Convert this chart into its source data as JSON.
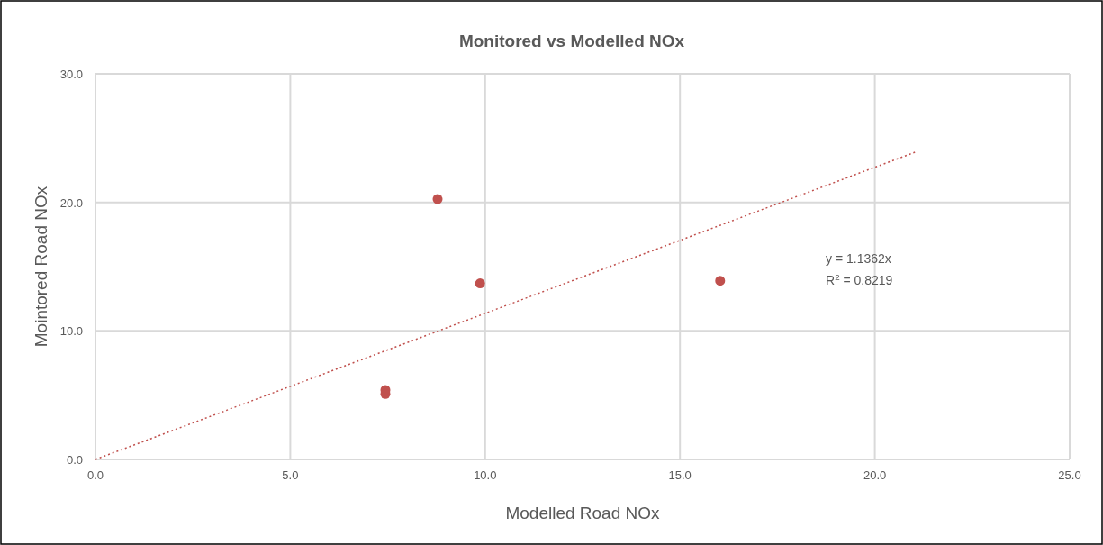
{
  "chart_data": {
    "type": "scatter",
    "title": "Monitored vs Modelled NOx",
    "xlabel": "Modelled Road NOx",
    "ylabel": "Mointored Road NOx",
    "xlim": [
      0,
      25
    ],
    "ylim": [
      0,
      30
    ],
    "xticks": [
      {
        "value": 0,
        "label": "0.0"
      },
      {
        "value": 5,
        "label": "5.0"
      },
      {
        "value": 10,
        "label": "10.0"
      },
      {
        "value": 15,
        "label": "15.0"
      },
      {
        "value": 20,
        "label": "20.0"
      },
      {
        "value": 25,
        "label": "25.0"
      }
    ],
    "yticks": [
      {
        "value": 0,
        "label": "0.0"
      },
      {
        "value": 10,
        "label": "10.0"
      },
      {
        "value": 20,
        "label": "20.0"
      },
      {
        "value": 30,
        "label": "30.0"
      }
    ],
    "grid": true,
    "marker": "circle",
    "series": [
      {
        "type": "scatter",
        "color": "#c0504d",
        "x": [
          7.44,
          7.44,
          8.78,
          9.87,
          16.03
        ],
        "values": [
          5.4,
          5.1,
          20.25,
          13.7,
          13.9
        ]
      },
      {
        "type": "line",
        "color": "#c0504d",
        "line_style": "dotted",
        "marker": "none",
        "x": [
          0,
          21.03
        ],
        "values": [
          0,
          23.9
        ]
      }
    ],
    "annotations": [
      "y = 1.1362x",
      "R$^{2}$ = 0.8219"
    ]
  }
}
